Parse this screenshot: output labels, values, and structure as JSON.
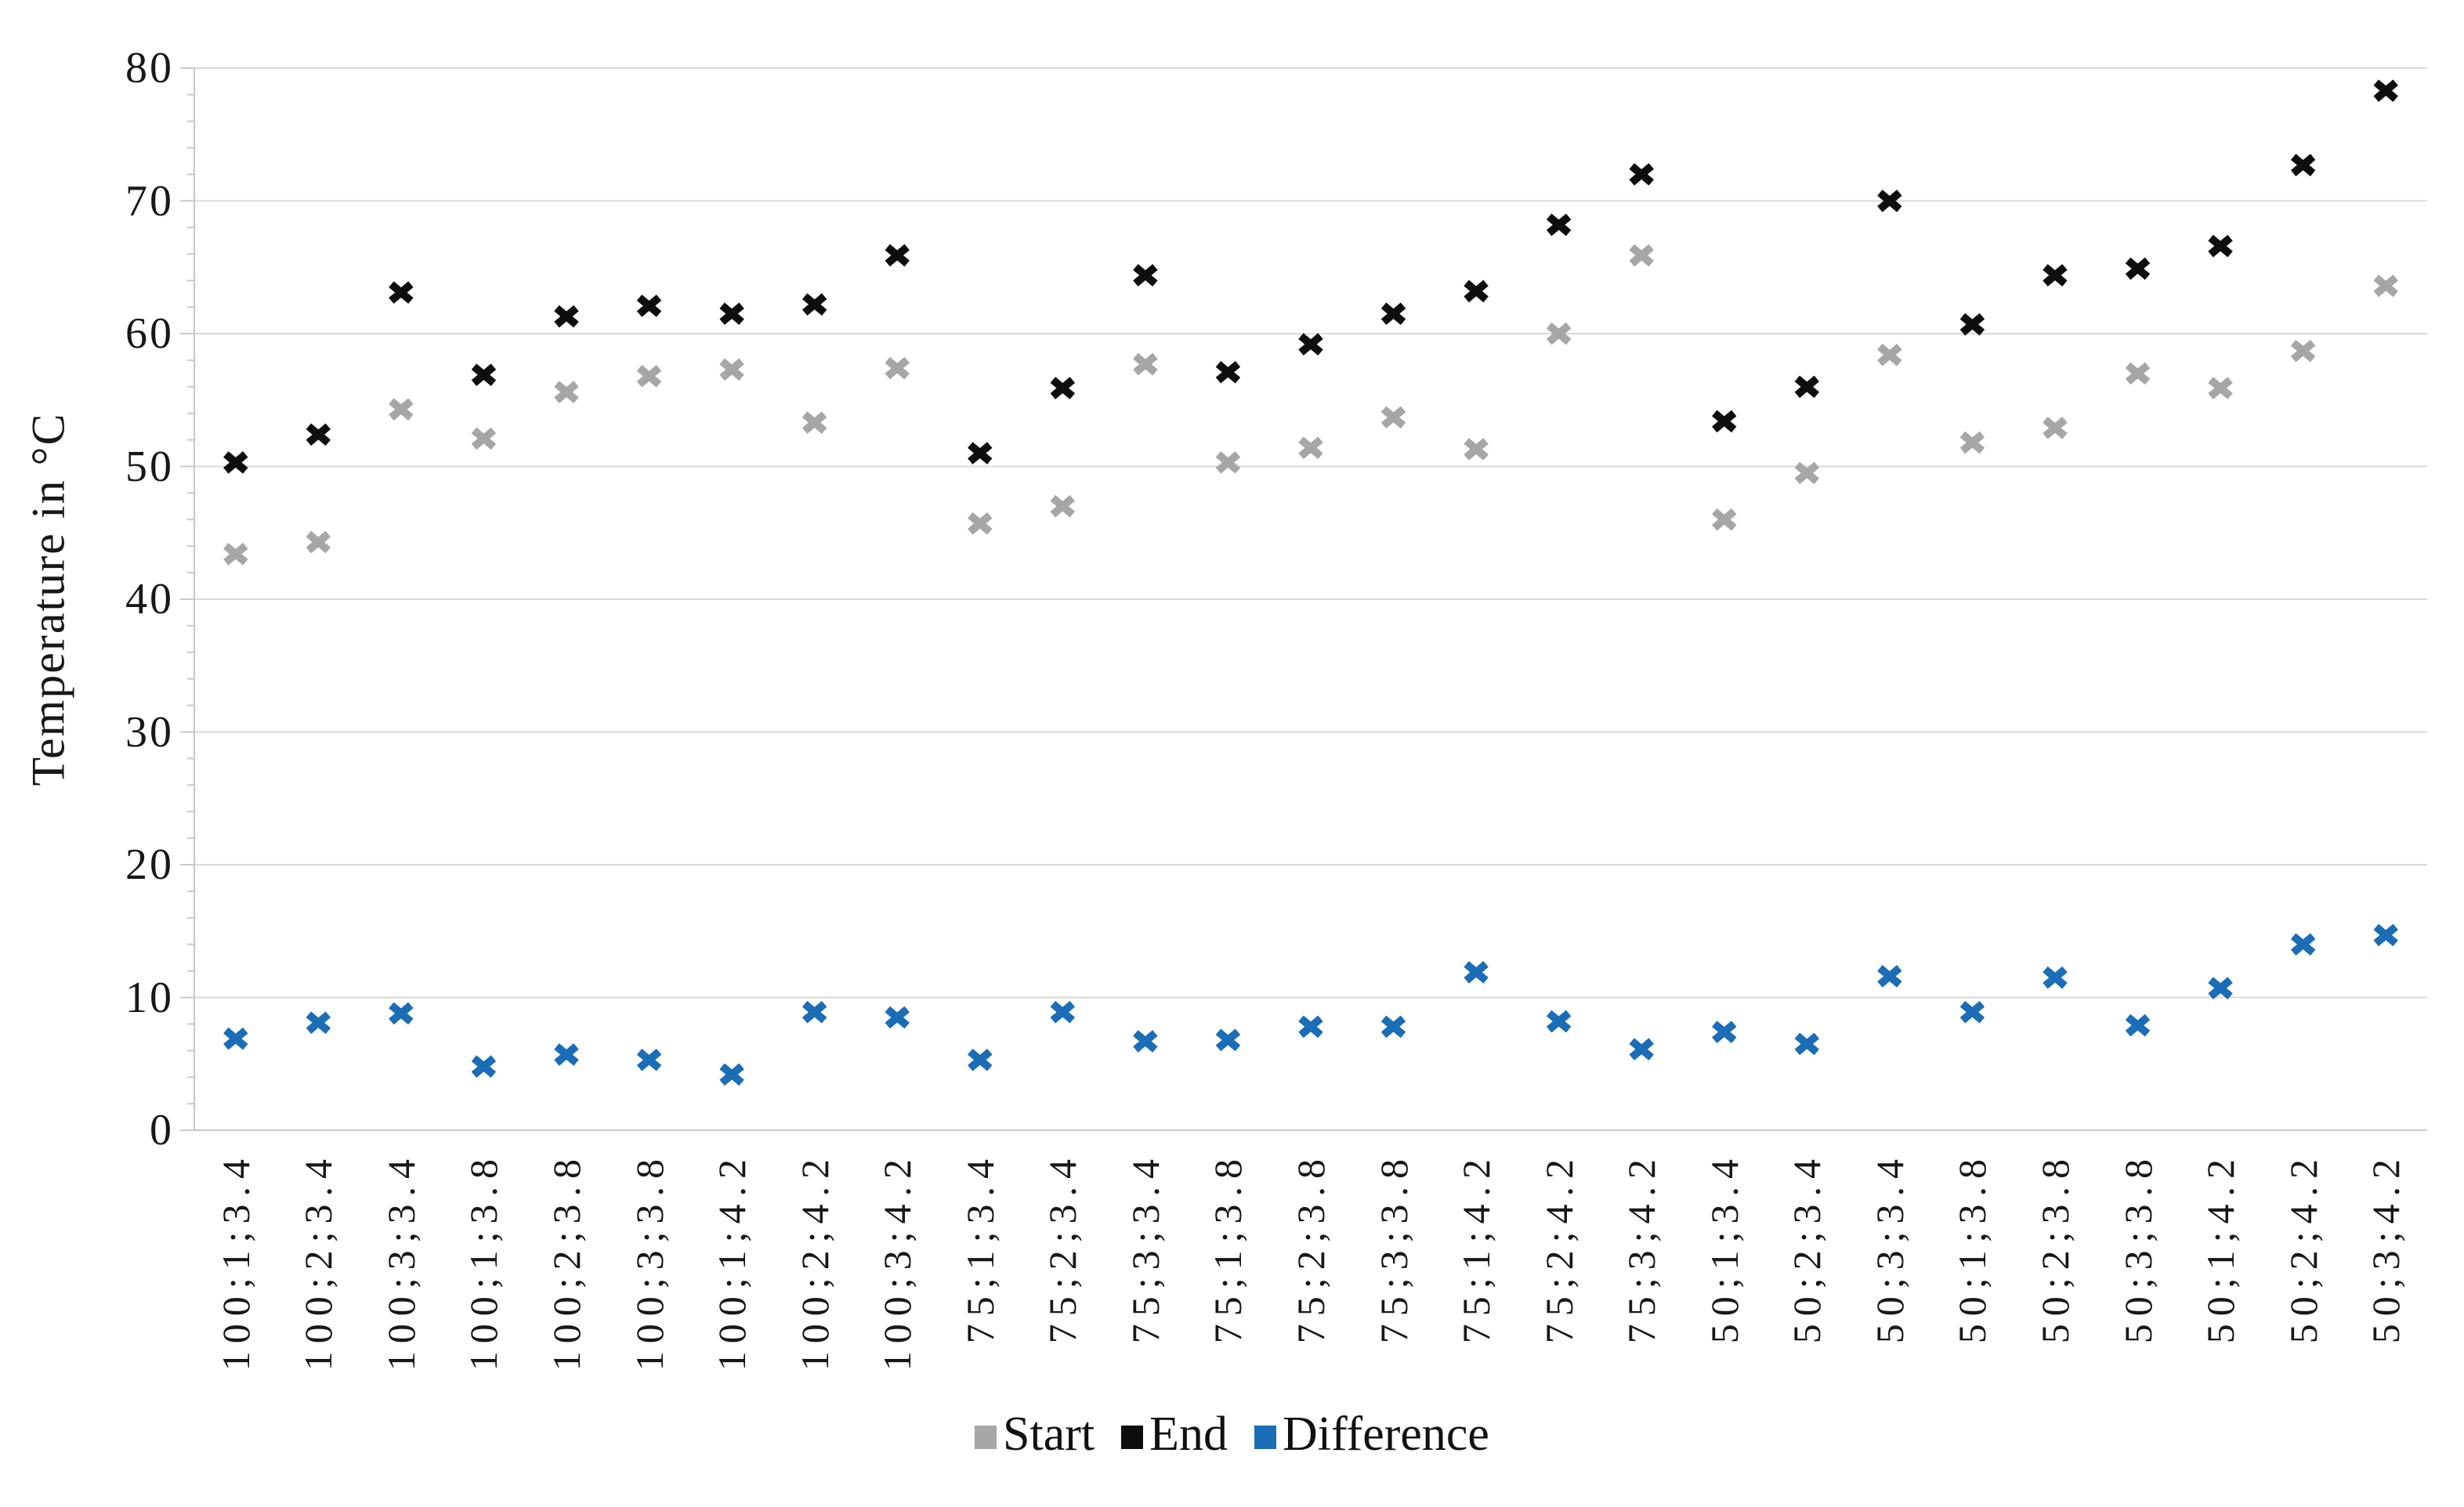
{
  "figure": {
    "background": "#ffffff"
  },
  "chart_data": {
    "type": "scatter",
    "title": "",
    "xlabel": "",
    "ylabel": "Temperature in °C",
    "ylim": [
      0,
      80
    ],
    "yticks": [
      0,
      10,
      20,
      30,
      40,
      50,
      60,
      70,
      80
    ],
    "y_minor_tick_step": 2,
    "grid": "horizontal-major",
    "legend_position": "bottom-center",
    "marker_style": "x",
    "gridline_color": "#d9d9d9",
    "axis_line_color": "#c8c8c8",
    "axis_text_color": "#171717",
    "categories": [
      "100;1;3.4",
      "100;2;3.4",
      "100;3;3.4",
      "100;1;3.8",
      "100;2;3.8",
      "100;3;3.8",
      "100;1;4.2",
      "100;2;4.2",
      "100;3;4.2",
      "75;1;3.4",
      "75;2;3.4",
      "75;3;3.4",
      "75;1;3.8",
      "75;2;3.8",
      "75;3;3.8",
      "75;1;4.2",
      "75;2;4.2",
      "75;3;4.2",
      "50;1;3.4",
      "50;2;3.4",
      "50;3;3.4",
      "50;1;3.8",
      "50;2;3.8",
      "50;3;3.8",
      "50;1;4.2",
      "50;2;4.2",
      "50;3;4.2"
    ],
    "series": [
      {
        "name": "Start",
        "color": "#a6a6a6",
        "values": [
          43.4,
          44.3,
          54.3,
          52.1,
          55.6,
          56.8,
          57.3,
          53.3,
          57.4,
          45.7,
          47.0,
          57.7,
          50.3,
          51.4,
          53.7,
          51.3,
          60.0,
          65.9,
          46.0,
          49.5,
          58.4,
          51.8,
          52.9,
          57.0,
          55.9,
          58.7,
          63.6
        ]
      },
      {
        "name": "End",
        "color": "#0e0e0e",
        "values": [
          50.3,
          52.4,
          63.1,
          56.9,
          61.3,
          62.1,
          61.5,
          62.2,
          65.9,
          51.0,
          55.9,
          64.4,
          57.1,
          59.2,
          61.5,
          63.2,
          68.2,
          72.0,
          53.4,
          56.0,
          70.0,
          60.7,
          64.4,
          64.9,
          66.6,
          72.7,
          78.3
        ]
      },
      {
        "name": "Difference",
        "color": "#1a6db6",
        "values": [
          6.9,
          8.1,
          8.8,
          4.8,
          5.7,
          5.3,
          4.2,
          8.9,
          8.5,
          5.3,
          8.9,
          6.7,
          6.8,
          7.8,
          7.8,
          11.9,
          8.2,
          6.1,
          7.4,
          6.5,
          11.6,
          8.9,
          11.5,
          7.9,
          10.7,
          14.0,
          14.7
        ]
      }
    ]
  }
}
